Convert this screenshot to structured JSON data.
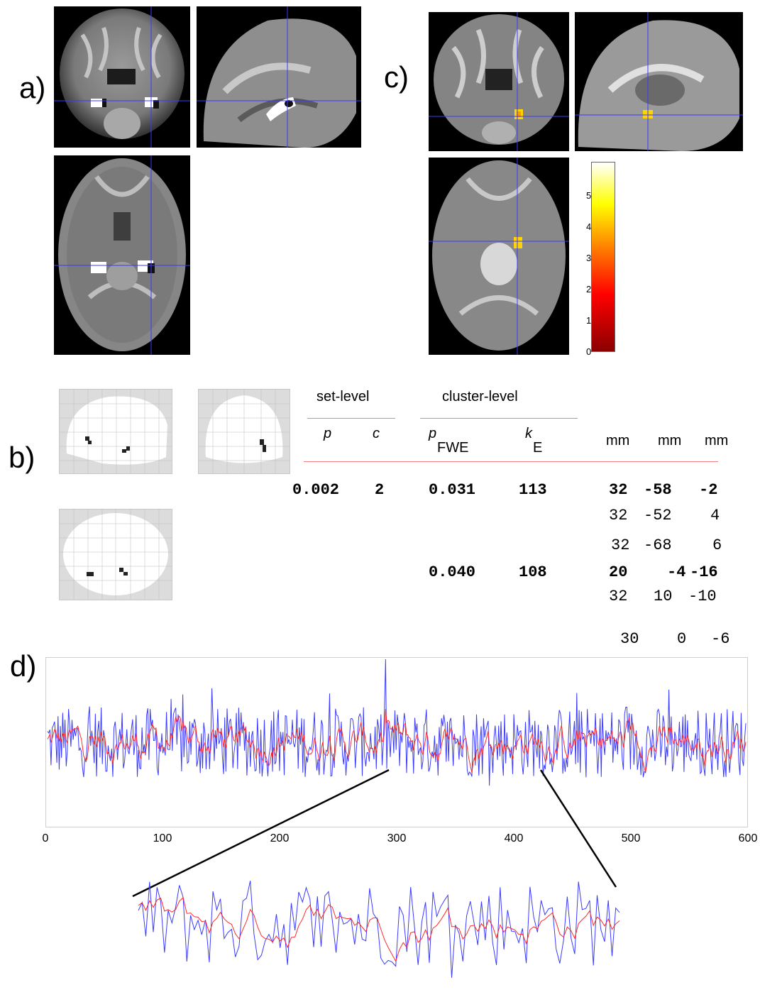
{
  "panels": {
    "a": "a)",
    "b": "b)",
    "c": "c)",
    "d": "d)"
  },
  "table": {
    "set_level": "set-level",
    "cluster_level": "cluster-level",
    "col_p": "p",
    "col_c": "c",
    "col_pfwe_main": "p",
    "col_pfwe_sub": "FWE",
    "col_ke_main": "k",
    "col_ke_sub": "E",
    "col_mm": [
      "mm",
      "mm",
      "mm"
    ],
    "rows": [
      {
        "p": "0.002",
        "c": "2",
        "pfwe": "0.031",
        "ke": "113",
        "x": "32",
        "y": "-58",
        "z": "-2",
        "bold": true
      },
      {
        "p": "",
        "c": "",
        "pfwe": "",
        "ke": "",
        "x": "32",
        "y": "-52",
        "z": "4",
        "bold": false
      },
      {
        "p": "",
        "c": "",
        "pfwe": "",
        "ke": "",
        "x": "32",
        "y": "-68",
        "z": "6",
        "bold": false
      },
      {
        "p": "",
        "c": "",
        "pfwe": "0.040",
        "ke": "108",
        "x": "20",
        "y": "-4",
        "z": "-16",
        "bold": true
      },
      {
        "p": "",
        "c": "",
        "pfwe": "",
        "ke": "",
        "x": "32",
        "y": "10",
        "z": "-10",
        "bold": false
      },
      {
        "p": "",
        "c": "",
        "pfwe": "",
        "ke": "",
        "x": "30",
        "y": "0",
        "z": "-6",
        "bold": false
      }
    ]
  },
  "colorbar": {
    "ticks": [
      "5",
      "4",
      "3",
      "2",
      "1",
      "0"
    ],
    "max": 5.8,
    "min": 0
  },
  "chart_data": [
    {
      "type": "line",
      "x_ticks": [
        "0",
        "100",
        "200",
        "300",
        "400",
        "500",
        "600"
      ],
      "xlim": [
        0,
        600
      ],
      "series": [
        {
          "color": "#3b3bff",
          "values": "approx. 600 noisy time-series samples"
        },
        {
          "color": "#ff2a2a",
          "values": "approx. 600 smoothed time-series samples"
        }
      ],
      "zoom_range": [
        295,
        425
      ]
    }
  ],
  "colors": {
    "series_blue": "#3b3bff",
    "series_red": "#ff2a2a",
    "crosshair": "#3a3aff",
    "table_rule": "#f08080"
  }
}
